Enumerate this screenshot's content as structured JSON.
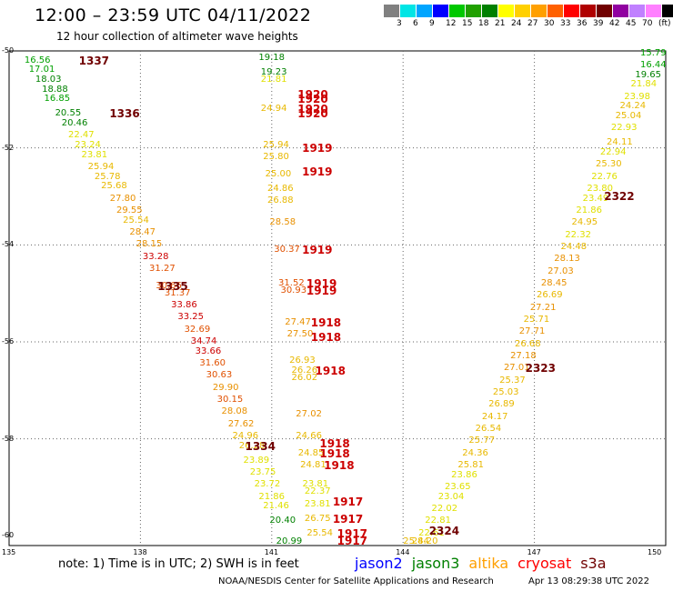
{
  "header": {
    "title": "12:00 – 23:59 UTC 04/11/2022",
    "subtitle": "12 hour collection of altimeter wave heights"
  },
  "scale": {
    "colors": [
      "#808080",
      "#00e5e5",
      "#00a5ff",
      "#0000ff",
      "#00c800",
      "#20a000",
      "#008000",
      "#ffff00",
      "#ffd000",
      "#ffa000",
      "#ff6000",
      "#ff0000",
      "#b00000",
      "#700000",
      "#9000a0",
      "#c080ff",
      "#ff80ff",
      "#000000"
    ],
    "labels": [
      "3",
      "6",
      "9",
      "12",
      "15",
      "18",
      "21",
      "24",
      "27",
      "30",
      "33",
      "36",
      "39",
      "42",
      "45",
      "70",
      "(ft)"
    ]
  },
  "axes": {
    "lat_labels": [
      "-50",
      "-52",
      "-54",
      "-56",
      "-58",
      "-60"
    ],
    "lon_labels": [
      "135",
      "138",
      "141",
      "144",
      "147",
      "150"
    ]
  },
  "footer": {
    "note": "note: 1) Time is in UTC; 2) SWH is in feet",
    "legend": [
      {
        "name": "jason2",
        "color": "#0000ff"
      },
      {
        "name": "jason3",
        "color": "#008000"
      },
      {
        "name": "altika",
        "color": "#ffa000"
      },
      {
        "name": "cryosat",
        "color": "#ff0000"
      },
      {
        "name": "s3a",
        "color": "#700000"
      }
    ],
    "credit": "NOAA/NESDIS Center for Satellite Applications and Research",
    "stamp": "Apr 13 08:29:38 UTC 2022"
  },
  "map_data": {
    "times": [
      {
        "t": "1337",
        "lon": 136.8,
        "lat": -50.2
      },
      {
        "t": "1336",
        "lon": 137.5,
        "lat": -51.3
      },
      {
        "t": "1335",
        "lon": 138.6,
        "lat": -54.85
      },
      {
        "t": "1334",
        "lon": 140.6,
        "lat": -58.15
      },
      {
        "t": "1920",
        "lon": 141.8,
        "lat": -50.9
      },
      {
        "t": "1920",
        "lon": 141.8,
        "lat": -51.0
      },
      {
        "t": "1920",
        "lon": 141.8,
        "lat": -51.2
      },
      {
        "t": "1920",
        "lon": 141.8,
        "lat": -51.3
      },
      {
        "t": "1919",
        "lon": 141.9,
        "lat": -52.0
      },
      {
        "t": "1919",
        "lon": 141.9,
        "lat": -52.5
      },
      {
        "t": "1919",
        "lon": 141.9,
        "lat": -54.1
      },
      {
        "t": "1919",
        "lon": 142.0,
        "lat": -54.8
      },
      {
        "t": "1919",
        "lon": 142.0,
        "lat": -54.95
      },
      {
        "t": "1918",
        "lon": 142.1,
        "lat": -55.6
      },
      {
        "t": "1918",
        "lon": 142.1,
        "lat": -55.9
      },
      {
        "t": "1918",
        "lon": 142.2,
        "lat": -56.6
      },
      {
        "t": "1918",
        "lon": 142.3,
        "lat": -58.1
      },
      {
        "t": "1918",
        "lon": 142.3,
        "lat": -58.3
      },
      {
        "t": "1918",
        "lon": 142.4,
        "lat": -58.55
      },
      {
        "t": "1917",
        "lon": 142.6,
        "lat": -59.3
      },
      {
        "t": "1917",
        "lon": 142.6,
        "lat": -59.65
      },
      {
        "t": "1917",
        "lon": 142.7,
        "lat": -59.95
      },
      {
        "t": "1917",
        "lon": 142.7,
        "lat": -60.15
      },
      {
        "t": "2322",
        "lon": 148.8,
        "lat": -53.0
      },
      {
        "t": "2323",
        "lon": 147.0,
        "lat": -56.55
      },
      {
        "t": "2324",
        "lon": 144.8,
        "lat": -59.9
      }
    ],
    "waves": [
      {
        "v": "16.56",
        "lon": 135.6,
        "lat": -50.2
      },
      {
        "v": "17.01",
        "lon": 135.7,
        "lat": -50.4
      },
      {
        "v": "18.03",
        "lon": 135.85,
        "lat": -50.6
      },
      {
        "v": "18.88",
        "lon": 136.0,
        "lat": -50.8
      },
      {
        "v": "16.85",
        "lon": 136.05,
        "lat": -51.0
      },
      {
        "v": "20.55",
        "lon": 136.3,
        "lat": -51.3
      },
      {
        "v": "20.46",
        "lon": 136.45,
        "lat": -51.5
      },
      {
        "v": "22.47",
        "lon": 136.6,
        "lat": -51.75
      },
      {
        "v": "23.24",
        "lon": 136.75,
        "lat": -51.95
      },
      {
        "v": "23.81",
        "lon": 136.9,
        "lat": -52.15
      },
      {
        "v": "25.94",
        "lon": 137.05,
        "lat": -52.4
      },
      {
        "v": "25.78",
        "lon": 137.2,
        "lat": -52.6
      },
      {
        "v": "25.68",
        "lon": 137.35,
        "lat": -52.8
      },
      {
        "v": "27.80",
        "lon": 137.55,
        "lat": -53.05
      },
      {
        "v": "29.55",
        "lon": 137.7,
        "lat": -53.3
      },
      {
        "v": "25.54",
        "lon": 137.85,
        "lat": -53.5
      },
      {
        "v": "28.47",
        "lon": 138.0,
        "lat": -53.75
      },
      {
        "v": "28.15",
        "lon": 138.15,
        "lat": -54.0
      },
      {
        "v": "33.28",
        "lon": 138.3,
        "lat": -54.25
      },
      {
        "v": "31.27",
        "lon": 138.45,
        "lat": -54.5
      },
      {
        "v": "30.66",
        "lon": 138.6,
        "lat": -54.85
      },
      {
        "v": "31.37",
        "lon": 138.8,
        "lat": -55.0
      },
      {
        "v": "33.86",
        "lon": 138.95,
        "lat": -55.25
      },
      {
        "v": "33.25",
        "lon": 139.1,
        "lat": -55.5
      },
      {
        "v": "32.69",
        "lon": 139.25,
        "lat": -55.75
      },
      {
        "v": "34.74",
        "lon": 139.4,
        "lat": -56.0
      },
      {
        "v": "33.66",
        "lon": 139.5,
        "lat": -56.2
      },
      {
        "v": "31.60",
        "lon": 139.6,
        "lat": -56.45
      },
      {
        "v": "30.63",
        "lon": 139.75,
        "lat": -56.7
      },
      {
        "v": "29.90",
        "lon": 139.9,
        "lat": -56.95
      },
      {
        "v": "30.15",
        "lon": 140.0,
        "lat": -57.2
      },
      {
        "v": "28.08",
        "lon": 140.1,
        "lat": -57.45
      },
      {
        "v": "27.62",
        "lon": 140.25,
        "lat": -57.7
      },
      {
        "v": "24.96",
        "lon": 140.35,
        "lat": -57.95
      },
      {
        "v": "26.28",
        "lon": 140.5,
        "lat": -58.15
      },
      {
        "v": "23.89",
        "lon": 140.6,
        "lat": -58.45
      },
      {
        "v": "23.75",
        "lon": 140.75,
        "lat": -58.7
      },
      {
        "v": "23.72",
        "lon": 140.85,
        "lat": -58.95
      },
      {
        "v": "21.86",
        "lon": 140.95,
        "lat": -59.2
      },
      {
        "v": "21.46",
        "lon": 141.05,
        "lat": -59.4
      },
      {
        "v": "20.40",
        "lon": 141.2,
        "lat": -59.7
      },
      {
        "v": "20.99",
        "lon": 141.35,
        "lat": -60.15
      },
      {
        "v": "19.18",
        "lon": 140.95,
        "lat": -50.15
      },
      {
        "v": "19.23",
        "lon": 141.0,
        "lat": -50.45
      },
      {
        "v": "21.81",
        "lon": 141.0,
        "lat": -50.6
      },
      {
        "v": "24.94",
        "lon": 141.0,
        "lat": -51.2
      },
      {
        "v": "25.94",
        "lon": 141.05,
        "lat": -51.95
      },
      {
        "v": "25.80",
        "lon": 141.05,
        "lat": -52.2
      },
      {
        "v": "25.00",
        "lon": 141.1,
        "lat": -52.55
      },
      {
        "v": "24.86",
        "lon": 141.15,
        "lat": -52.85
      },
      {
        "v": "26.88",
        "lon": 141.15,
        "lat": -53.1
      },
      {
        "v": "28.58",
        "lon": 141.2,
        "lat": -53.55
      },
      {
        "v": "30.37",
        "lon": 141.3,
        "lat": -54.1
      },
      {
        "v": "31.52",
        "lon": 141.4,
        "lat": -54.8
      },
      {
        "v": "30.93",
        "lon": 141.45,
        "lat": -54.95
      },
      {
        "v": "27.47",
        "lon": 141.55,
        "lat": -55.6
      },
      {
        "v": "27.50",
        "lon": 141.6,
        "lat": -55.85
      },
      {
        "v": "26.93",
        "lon": 141.65,
        "lat": -56.4
      },
      {
        "v": "26.26",
        "lon": 141.7,
        "lat": -56.6
      },
      {
        "v": "26.02",
        "lon": 141.7,
        "lat": -56.75
      },
      {
        "v": "27.02",
        "lon": 141.8,
        "lat": -57.5
      },
      {
        "v": "24.66",
        "lon": 141.8,
        "lat": -57.95
      },
      {
        "v": "24.85",
        "lon": 141.85,
        "lat": -58.3
      },
      {
        "v": "24.81",
        "lon": 141.9,
        "lat": -58.55
      },
      {
        "v": "23.81",
        "lon": 141.95,
        "lat": -58.95
      },
      {
        "v": "22.37",
        "lon": 142.0,
        "lat": -59.1
      },
      {
        "v": "23.81",
        "lon": 142.0,
        "lat": -59.35
      },
      {
        "v": "26.75",
        "lon": 142.0,
        "lat": -59.65
      },
      {
        "v": "25.54",
        "lon": 142.05,
        "lat": -59.95
      },
      {
        "v": "15.79",
        "lon": 149.8,
        "lat": -50.05
      },
      {
        "v": "16.44",
        "lon": 149.7,
        "lat": -50.3
      },
      {
        "v": "19.65",
        "lon": 149.55,
        "lat": -50.5
      },
      {
        "v": "21.84",
        "lon": 149.45,
        "lat": -50.7
      },
      {
        "v": "23.98",
        "lon": 149.3,
        "lat": -50.95
      },
      {
        "v": "24.24",
        "lon": 149.2,
        "lat": -51.15
      },
      {
        "v": "25.04",
        "lon": 149.1,
        "lat": -51.35
      },
      {
        "v": "22.93",
        "lon": 149.0,
        "lat": -51.6
      },
      {
        "v": "24.11",
        "lon": 148.9,
        "lat": -51.9
      },
      {
        "v": "22.94",
        "lon": 148.75,
        "lat": -52.1
      },
      {
        "v": "25.30",
        "lon": 148.65,
        "lat": -52.35
      },
      {
        "v": "22.76",
        "lon": 148.55,
        "lat": -52.6
      },
      {
        "v": "23.80",
        "lon": 148.45,
        "lat": -52.85
      },
      {
        "v": "23.49",
        "lon": 148.35,
        "lat": -53.05
      },
      {
        "v": "21.86",
        "lon": 148.2,
        "lat": -53.3
      },
      {
        "v": "24.95",
        "lon": 148.1,
        "lat": -53.55
      },
      {
        "v": "22.32",
        "lon": 147.95,
        "lat": -53.8
      },
      {
        "v": "24.48",
        "lon": 147.85,
        "lat": -54.05
      },
      {
        "v": "28.13",
        "lon": 147.7,
        "lat": -54.3
      },
      {
        "v": "27.03",
        "lon": 147.55,
        "lat": -54.55
      },
      {
        "v": "28.45",
        "lon": 147.4,
        "lat": -54.8
      },
      {
        "v": "26.69",
        "lon": 147.3,
        "lat": -55.05
      },
      {
        "v": "27.21",
        "lon": 147.15,
        "lat": -55.3
      },
      {
        "v": "25.71",
        "lon": 147.0,
        "lat": -55.55
      },
      {
        "v": "27.71",
        "lon": 146.9,
        "lat": -55.8
      },
      {
        "v": "26.68",
        "lon": 146.8,
        "lat": -56.05
      },
      {
        "v": "27.18",
        "lon": 146.7,
        "lat": -56.3
      },
      {
        "v": "27.01",
        "lon": 146.55,
        "lat": -56.55
      },
      {
        "v": "25.37",
        "lon": 146.45,
        "lat": -56.8
      },
      {
        "v": "25.03",
        "lon": 146.3,
        "lat": -57.05
      },
      {
        "v": "26.89",
        "lon": 146.2,
        "lat": -57.3
      },
      {
        "v": "24.17",
        "lon": 146.05,
        "lat": -57.55
      },
      {
        "v": "26.54",
        "lon": 145.9,
        "lat": -57.8
      },
      {
        "v": "25.77",
        "lon": 145.75,
        "lat": -58.05
      },
      {
        "v": "24.36",
        "lon": 145.6,
        "lat": -58.3
      },
      {
        "v": "25.81",
        "lon": 145.5,
        "lat": -58.55
      },
      {
        "v": "23.86",
        "lon": 145.35,
        "lat": -58.75
      },
      {
        "v": "23.65",
        "lon": 145.2,
        "lat": -59.0
      },
      {
        "v": "23.04",
        "lon": 145.05,
        "lat": -59.2
      },
      {
        "v": "22.02",
        "lon": 144.9,
        "lat": -59.45
      },
      {
        "v": "22.81",
        "lon": 144.75,
        "lat": -59.7
      },
      {
        "v": "22.61",
        "lon": 144.6,
        "lat": -59.95
      },
      {
        "v": "24.20",
        "lon": 144.45,
        "lat": -60.2
      },
      {
        "v": "25.84",
        "lon": 144.25,
        "lat": -60.5
      }
    ]
  }
}
